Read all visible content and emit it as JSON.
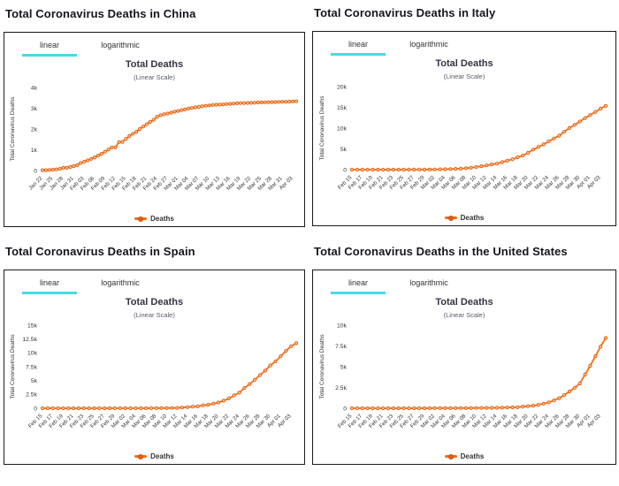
{
  "colors": {
    "line": "#f07018",
    "marker_fill": "#ffd2a0",
    "marker_stroke": "#e85d0f",
    "tab_underline": "#45dbe8",
    "heading_text": "#15151d",
    "axis_text": "#333333",
    "box_border": "#1a1a1a"
  },
  "panels": [
    {
      "heading": "Total Coronavirus Deaths in China",
      "tabs": [
        "linear",
        "logarithmic"
      ],
      "active_tab": "linear"
    },
    {
      "heading": "Total Coronavirus Deaths in Italy",
      "tabs": [
        "linear",
        "logarithmic"
      ],
      "active_tab": "linear"
    },
    {
      "heading": "Total Coronavirus Deaths in Spain",
      "tabs": [
        "linear",
        "logarithmic"
      ],
      "active_tab": "linear"
    },
    {
      "heading": "Total Coronavirus Deaths in the United States",
      "tabs": [
        "linear",
        "logarithmic"
      ],
      "active_tab": "linear"
    }
  ],
  "chart_data": [
    {
      "type": "line",
      "title": "Total Deaths",
      "subtitle": "(Linear Scale)",
      "ylabel": "Total Coronavirus Deaths",
      "xlabel": "",
      "grid": false,
      "legend_position": "bottom",
      "legend": [
        "Deaths"
      ],
      "ylim": [
        0,
        4000
      ],
      "yticks": [
        {
          "v": 0,
          "label": "0"
        },
        {
          "v": 1000,
          "label": "1k"
        },
        {
          "v": 2000,
          "label": "2k"
        },
        {
          "v": 3000,
          "label": "3k"
        },
        {
          "v": 4000,
          "label": "4k"
        }
      ],
      "x_tick_labels": [
        "Jan 22",
        "Jan 25",
        "Jan 28",
        "Jan 31",
        "Feb 03",
        "Feb 06",
        "Feb 09",
        "Feb 12",
        "Feb 15",
        "Feb 18",
        "Feb 21",
        "Feb 24",
        "Feb 27",
        "Mar 01",
        "Mar 04",
        "Mar 07",
        "Mar 10",
        "Mar 13",
        "Mar 16",
        "Mar 19",
        "Mar 22",
        "Mar 25",
        "Mar 28",
        "Mar 31",
        "Apr 03"
      ],
      "series": [
        {
          "name": "Deaths",
          "values": [
            17,
            18,
            26,
            42,
            56,
            82,
            131,
            133,
            171,
            213,
            259,
            361,
            425,
            491,
            563,
            633,
            718,
            805,
            905,
            1012,
            1112,
            1117,
            1369,
            1380,
            1523,
            1665,
            1770,
            1868,
            2004,
            2118,
            2236,
            2345,
            2442,
            2592,
            2663,
            2715,
            2744,
            2788,
            2835,
            2870,
            2912,
            2943,
            2981,
            3012,
            3042,
            3070,
            3097,
            3119,
            3136,
            3158,
            3169,
            3176,
            3189,
            3199,
            3213,
            3226,
            3237,
            3245,
            3248,
            3255,
            3261,
            3270,
            3277,
            3281,
            3287,
            3292,
            3295,
            3300,
            3305,
            3309,
            3312,
            3318,
            3326,
            3330
          ]
        }
      ]
    },
    {
      "type": "line",
      "title": "Total Deaths",
      "subtitle": "(Linear Scale)",
      "ylabel": "Total Coronavirus Deaths",
      "xlabel": "",
      "grid": false,
      "legend_position": "bottom",
      "legend": [
        "Deaths"
      ],
      "ylim": [
        0,
        20000
      ],
      "yticks": [
        {
          "v": 0,
          "label": "0"
        },
        {
          "v": 5000,
          "label": "5k"
        },
        {
          "v": 10000,
          "label": "10k"
        },
        {
          "v": 15000,
          "label": "15k"
        },
        {
          "v": 20000,
          "label": "20k"
        }
      ],
      "x_tick_labels": [
        "Feb 15",
        "Feb 17",
        "Feb 19",
        "Feb 21",
        "Feb 23",
        "Feb 25",
        "Feb 27",
        "Feb 29",
        "Mar 02",
        "Mar 04",
        "Mar 06",
        "Mar 08",
        "Mar 10",
        "Mar 12",
        "Mar 14",
        "Mar 16",
        "Mar 18",
        "Mar 20",
        "Mar 22",
        "Mar 24",
        "Mar 26",
        "Mar 28",
        "Mar 30",
        "Apr 01",
        "Apr 03"
      ],
      "series": [
        {
          "name": "Deaths",
          "values": [
            0,
            0,
            0,
            0,
            0,
            0,
            1,
            2,
            3,
            7,
            10,
            12,
            17,
            21,
            29,
            34,
            52,
            79,
            107,
            148,
            197,
            233,
            366,
            463,
            631,
            827,
            1016,
            1266,
            1441,
            1809,
            2158,
            2503,
            2978,
            3405,
            4032,
            4825,
            5476,
            6077,
            6820,
            7503,
            8165,
            9134,
            10023,
            10779,
            11591,
            12428,
            13155,
            13915,
            14681,
            15362
          ]
        }
      ]
    },
    {
      "type": "line",
      "title": "Total Deaths",
      "subtitle": "(Linear Scale)",
      "ylabel": "Total Coronavirus Deaths",
      "xlabel": "",
      "grid": false,
      "legend_position": "bottom",
      "legend": [
        "Deaths"
      ],
      "ylim": [
        0,
        15000
      ],
      "yticks": [
        {
          "v": 0,
          "label": "0"
        },
        {
          "v": 2500,
          "label": "2.5k"
        },
        {
          "v": 5000,
          "label": "5k"
        },
        {
          "v": 7500,
          "label": "7.5k"
        },
        {
          "v": 10000,
          "label": "10k"
        },
        {
          "v": 12500,
          "label": "12.5k"
        },
        {
          "v": 15000,
          "label": "15k"
        }
      ],
      "x_tick_labels": [
        "Feb 15",
        "Feb 17",
        "Feb 19",
        "Feb 21",
        "Feb 23",
        "Feb 25",
        "Feb 27",
        "Feb 29",
        "Mar 02",
        "Mar 04",
        "Mar 06",
        "Mar 08",
        "Mar 10",
        "Mar 12",
        "Mar 14",
        "Mar 16",
        "Mar 18",
        "Mar 20",
        "Mar 22",
        "Mar 24",
        "Mar 26",
        "Mar 28",
        "Mar 30",
        "Apr 01",
        "Apr 03"
      ],
      "series": [
        {
          "name": "Deaths",
          "values": [
            0,
            0,
            0,
            0,
            0,
            0,
            0,
            0,
            0,
            0,
            0,
            0,
            0,
            0,
            0,
            0,
            0,
            1,
            2,
            3,
            5,
            10,
            17,
            28,
            35,
            54,
            55,
            133,
            195,
            289,
            342,
            533,
            623,
            830,
            1043,
            1375,
            1772,
            2311,
            2808,
            3647,
            4365,
            5138,
            5982,
            6803,
            7716,
            8464,
            9387,
            10348,
            11198,
            11744
          ]
        }
      ]
    },
    {
      "type": "line",
      "title": "Total Deaths",
      "subtitle": "(Linear Scale)",
      "ylabel": "Total Coronavirus Deaths",
      "xlabel": "",
      "grid": false,
      "legend_position": "bottom",
      "legend": [
        "Deaths"
      ],
      "ylim": [
        0,
        10000
      ],
      "yticks": [
        {
          "v": 0,
          "label": "0"
        },
        {
          "v": 2500,
          "label": "2.5k"
        },
        {
          "v": 5000,
          "label": "5k"
        },
        {
          "v": 7500,
          "label": "7.5k"
        },
        {
          "v": 10000,
          "label": "10k"
        }
      ],
      "x_tick_labels": [
        "Feb 15",
        "Feb 17",
        "Feb 19",
        "Feb 21",
        "Feb 23",
        "Feb 25",
        "Feb 27",
        "Feb 29",
        "Mar 02",
        "Mar 04",
        "Mar 06",
        "Mar 08",
        "Mar 10",
        "Mar 12",
        "Mar 14",
        "Mar 16",
        "Mar 18",
        "Mar 20",
        "Mar 22",
        "Mar 24",
        "Mar 26",
        "Mar 28",
        "Mar 30",
        "Apr 01",
        "Apr 03"
      ],
      "series": [
        {
          "name": "Deaths",
          "values": [
            0,
            0,
            0,
            0,
            0,
            0,
            0,
            0,
            0,
            0,
            0,
            0,
            0,
            0,
            1,
            1,
            6,
            7,
            11,
            12,
            14,
            17,
            21,
            22,
            28,
            36,
            40,
            47,
            54,
            63,
            85,
            108,
            118,
            200,
            244,
            307,
            417,
            557,
            706,
            942,
            1209,
            1581,
            2026,
            2467,
            2978,
            4055,
            5110,
            6268,
            7406,
            8454
          ]
        }
      ]
    }
  ]
}
